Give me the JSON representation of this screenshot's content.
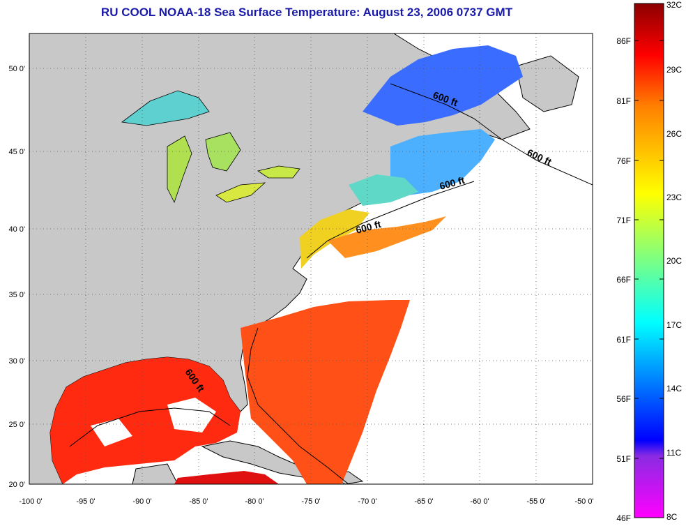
{
  "title": "RU COOL  NOAA-18  Sea Surface Temperature:  August 23, 2006 0737 GMT",
  "map": {
    "lon_labels": [
      "-100 0'",
      "-95 0'",
      "-90 0'",
      "-85 0'",
      "-80 0'",
      "-75 0'",
      "-70 0'",
      "-65 0'",
      "-60 0'",
      "-55 0'",
      "-50 0'"
    ],
    "lat_labels": [
      "50 0'",
      "45 0'",
      "40 0'",
      "35 0'",
      "30 0'",
      "25 0'",
      "20 0'"
    ],
    "lon_range": [
      -100,
      -50
    ],
    "lat_range": [
      20,
      52.5
    ],
    "land_color": "#c8c8c8",
    "cloud_color": "#ffffff",
    "isobath_labels": [
      "600 ft",
      "600 ft",
      "600 ft",
      "600 ft",
      "600 ft"
    ]
  },
  "colorbar": {
    "fahrenheit_labels": [
      "86F",
      "81F",
      "76F",
      "71F",
      "66F",
      "61F",
      "56F",
      "51F",
      "46F"
    ],
    "celsius_labels": [
      "32C",
      "29C",
      "26C",
      "23C",
      "20C",
      "17C",
      "14C",
      "11C",
      "8C"
    ],
    "range_c": [
      8,
      32
    ],
    "stops": [
      "#ff00ff",
      "#0000ff",
      "#00ffff",
      "#ffff00",
      "#ff8000",
      "#ff0000",
      "#8b0000"
    ]
  }
}
